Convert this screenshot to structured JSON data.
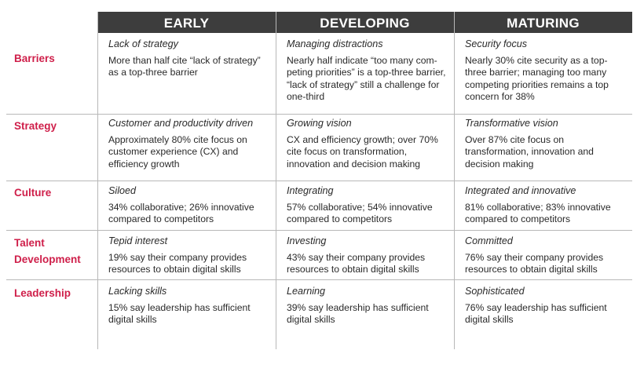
{
  "columns": [
    "EARLY",
    "DEVELOPING",
    "MATURING"
  ],
  "rows": [
    {
      "label": "Barriers",
      "cells": [
        {
          "subtitle": "Lack of strategy",
          "text": "More than half cite “lack of strategy”\nas a top-three barrier"
        },
        {
          "subtitle": "Managing distractions",
          "text": "Nearly half indicate “too many com-\npeting priorities” is a top-three barrier,\n“lack of strategy” still a challenge for\none-third"
        },
        {
          "subtitle": "Security focus",
          "text": "Nearly 30% cite security as a top-\nthree barrier; managing too many\ncompeting priorities remains a top\nconcern for 38%"
        }
      ]
    },
    {
      "label": "Strategy",
      "cells": [
        {
          "subtitle": "Customer and productivity driven",
          "text": "Approximately 80% cite focus on\ncustomer experience (CX) and\nefficiency growth"
        },
        {
          "subtitle": "Growing vision",
          "text": "CX and efficiency growth; over 70%\ncite focus on transformation,\ninnovation and decision making"
        },
        {
          "subtitle": "Transformative vision",
          "text": "Over 87% cite focus on\ntransformation, innovation and\ndecision making"
        }
      ]
    },
    {
      "label": "Culture",
      "cells": [
        {
          "subtitle": "Siloed",
          "text": "34% collaborative; 26% innovative\ncompared to competitors"
        },
        {
          "subtitle": "Integrating",
          "text": "57% collaborative; 54% innovative\ncompared to competitors"
        },
        {
          "subtitle": "Integrated and innovative",
          "text": "81% collaborative; 83% innovative\ncompared to competitors"
        }
      ]
    },
    {
      "label": "Talent Development",
      "cells": [
        {
          "subtitle": "Tepid interest",
          "text": "19% say their company provides\nresources to obtain digital skills"
        },
        {
          "subtitle": "Investing",
          "text": "43% say their company provides\nresources to obtain digital skills"
        },
        {
          "subtitle": "Committed",
          "text": "76% say their company provides\nresources to obtain digital skills"
        }
      ]
    },
    {
      "label": "Leadership",
      "cells": [
        {
          "subtitle": "Lacking skills",
          "text": "15% say leadership has sufficient\ndigital skills"
        },
        {
          "subtitle": "Learning",
          "text": "39% say leadership has sufficient\ndigital skills"
        },
        {
          "subtitle": "Sophisticated",
          "text": "76% say leadership has sufficient\ndigital skills"
        }
      ]
    }
  ],
  "colors": {
    "header_bg": "#3d3d3d",
    "header_text": "#ffffff",
    "row_label": "#cf1f4a",
    "grid": "#b8b8b8"
  }
}
